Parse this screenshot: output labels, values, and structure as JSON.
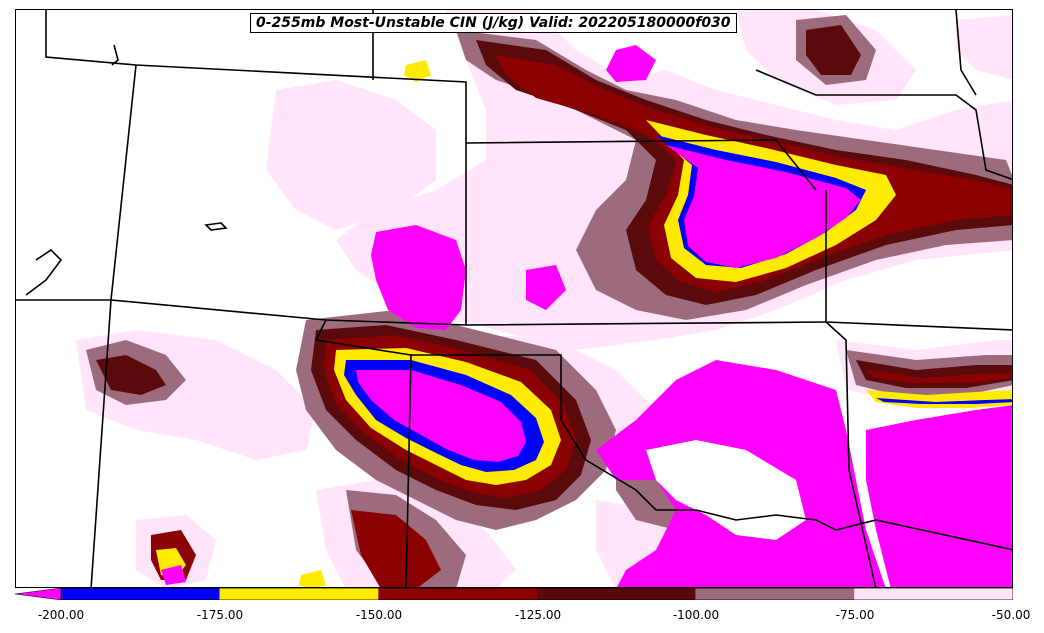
{
  "title": "0-255mb Most-Unstable CIN (J/kg) Valid: 202205180000f030",
  "colorbar": {
    "ticks": [
      "-200.00",
      "-175.00",
      "-150.00",
      "-125.00",
      "-100.00",
      "-75.00",
      "-50.00"
    ],
    "bins": [
      {
        "range": [
          -200,
          -175
        ],
        "color": "#0000ff"
      },
      {
        "range": [
          -175,
          -150
        ],
        "color": "#ffeb00"
      },
      {
        "range": [
          -150,
          -125
        ],
        "color": "#8b0000"
      },
      {
        "range": [
          -125,
          -100
        ],
        "color": "#5a0a0a"
      },
      {
        "range": [
          -100,
          -75
        ],
        "color": "#9c6b7d"
      },
      {
        "range": [
          -75,
          -50
        ],
        "color": "#ffe4fa"
      }
    ],
    "under_color": "#ff00ff"
  },
  "colors": {
    "magenta": "#ff00ff",
    "blue": "#0000ff",
    "yellow": "#ffeb00",
    "darkred": "#8b0000",
    "maroon": "#5a0a0a",
    "mauve": "#9c6b7d",
    "pink": "#ffe4fa",
    "border": "#000000"
  }
}
